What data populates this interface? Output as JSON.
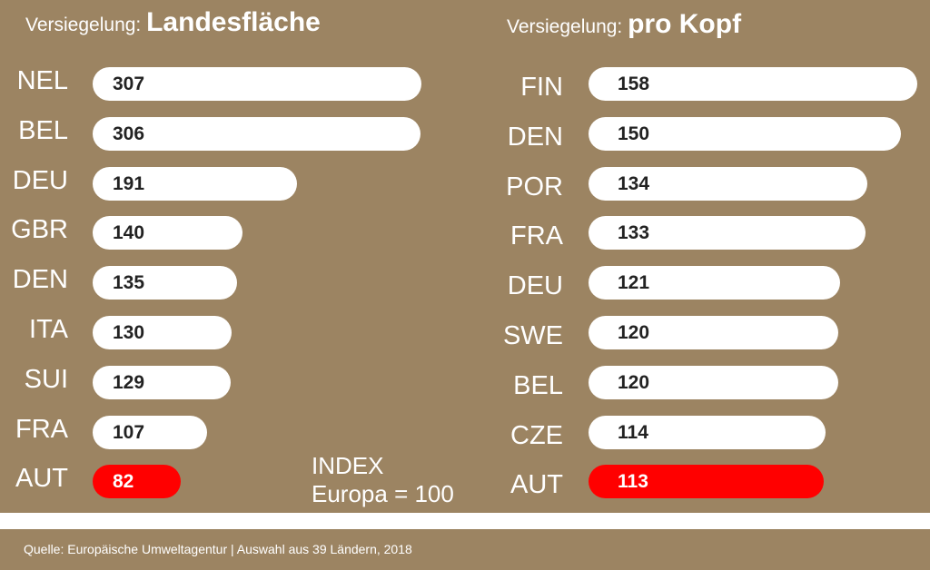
{
  "titles": {
    "left_prefix": "Versiegelung: ",
    "left_main": "Landesfläche",
    "right_prefix": "Versiegelung: ",
    "right_main": "pro Kopf"
  },
  "index_note": {
    "line1": "INDEX",
    "line2": "Europa = 100"
  },
  "source": "Quelle:  Europäische Umweltagentur | Auswahl aus 39 Ländern, 2018",
  "colors": {
    "background": "#9c8462",
    "bar": "#ffffff",
    "highlight": "#ff0000"
  },
  "chart_data": [
    {
      "type": "bar",
      "orientation": "horizontal",
      "title": "Versiegelung: Landesfläche",
      "categories": [
        "NEL",
        "BEL",
        "DEU",
        "GBR",
        "DEN",
        "ITA",
        "SUI",
        "FRA",
        "AUT"
      ],
      "values": [
        307,
        306,
        191,
        140,
        135,
        130,
        129,
        107,
        82
      ],
      "highlight": [
        "AUT"
      ]
    },
    {
      "type": "bar",
      "orientation": "horizontal",
      "title": "Versiegelung: pro Kopf",
      "categories": [
        "FIN",
        "DEN",
        "POR",
        "FRA",
        "DEU",
        "SWE",
        "BEL",
        "CZE",
        "AUT"
      ],
      "values": [
        158,
        150,
        134,
        133,
        121,
        120,
        120,
        114,
        113
      ],
      "highlight": [
        "AUT"
      ]
    }
  ]
}
